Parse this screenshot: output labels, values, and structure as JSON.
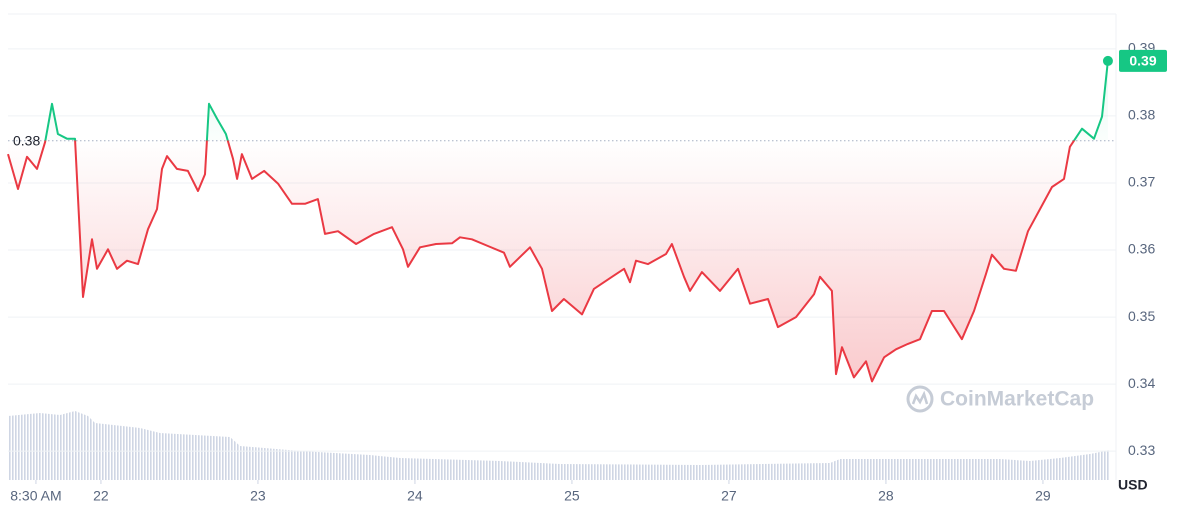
{
  "chart_data": {
    "type": "line",
    "xlim": [
      21.408,
      28.459
    ],
    "ylim": [
      0.3257,
      0.3952
    ],
    "yticks": [
      0.33,
      0.34,
      0.35,
      0.36,
      0.37,
      0.38,
      0.39
    ],
    "xticks": [
      {
        "value": 21.586,
        "label": "8:30 AM"
      },
      22,
      23,
      24,
      25,
      {
        "value": 26,
        "label": "27"
      },
      {
        "value": 27,
        "label": "28"
      },
      {
        "value": 28,
        "label": "29"
      }
    ],
    "grid": true,
    "color_up": "#16c784",
    "color_down": "#ea3943",
    "reference": {
      "value": 0.3763,
      "label": "0.38"
    },
    "last_price": {
      "value": 0.3882,
      "label": "0.39"
    },
    "currency": "USD",
    "watermark": "CoinMarketCap",
    "x": [
      21.408,
      21.472,
      21.529,
      21.593,
      21.644,
      21.688,
      21.726,
      21.784,
      21.835,
      21.867,
      21.886,
      21.943,
      21.975,
      22.045,
      22.102,
      22.166,
      22.236,
      22.3,
      22.357,
      22.389,
      22.421,
      22.484,
      22.554,
      22.618,
      22.663,
      22.688,
      22.739,
      22.796,
      22.841,
      22.867,
      22.898,
      22.962,
      23.039,
      23.128,
      23.217,
      23.3,
      23.382,
      23.427,
      23.51,
      23.625,
      23.739,
      23.854,
      23.924,
      23.956,
      24.032,
      24.134,
      24.236,
      24.287,
      24.363,
      24.465,
      24.567,
      24.605,
      24.733,
      24.809,
      24.873,
      24.949,
      25.064,
      25.14,
      25.255,
      25.332,
      25.37,
      25.408,
      25.484,
      25.599,
      25.637,
      25.714,
      25.752,
      25.828,
      25.943,
      26.058,
      26.134,
      26.249,
      26.312,
      26.427,
      26.542,
      26.58,
      26.656,
      26.682,
      26.72,
      26.796,
      26.873,
      26.911,
      26.988,
      27.064,
      27.14,
      27.217,
      27.293,
      27.37,
      27.484,
      27.561,
      27.637,
      27.675,
      27.752,
      27.828,
      27.905,
      27.981,
      28.058,
      28.134,
      28.172,
      28.249,
      28.325,
      28.376,
      28.414
    ],
    "values": [
      0.3743,
      0.3691,
      0.3739,
      0.3721,
      0.3761,
      0.3818,
      0.3773,
      0.3766,
      0.3766,
      0.3616,
      0.353,
      0.3616,
      0.3572,
      0.3601,
      0.3572,
      0.3584,
      0.3579,
      0.3631,
      0.3661,
      0.3721,
      0.374,
      0.3721,
      0.3718,
      0.3688,
      0.3713,
      0.3818,
      0.3796,
      0.3773,
      0.3736,
      0.3706,
      0.3743,
      0.3706,
      0.3718,
      0.3699,
      0.3669,
      0.3669,
      0.3676,
      0.3624,
      0.3628,
      0.3609,
      0.3624,
      0.3634,
      0.3601,
      0.3575,
      0.3604,
      0.3609,
      0.361,
      0.3619,
      0.3616,
      0.3606,
      0.3596,
      0.3575,
      0.3604,
      0.3572,
      0.3509,
      0.3527,
      0.3504,
      0.3542,
      0.356,
      0.3572,
      0.3552,
      0.3584,
      0.3579,
      0.3594,
      0.3609,
      0.356,
      0.3539,
      0.3567,
      0.3539,
      0.3572,
      0.352,
      0.3527,
      0.3485,
      0.35,
      0.3534,
      0.356,
      0.3539,
      0.3415,
      0.3455,
      0.341,
      0.3434,
      0.3404,
      0.344,
      0.3452,
      0.346,
      0.3467,
      0.3509,
      0.3509,
      0.3467,
      0.3509,
      0.3564,
      0.3593,
      0.3572,
      0.3569,
      0.3628,
      0.3661,
      0.3694,
      0.3706,
      0.3754,
      0.3781,
      0.3766,
      0.3799,
      0.3882
    ]
  }
}
